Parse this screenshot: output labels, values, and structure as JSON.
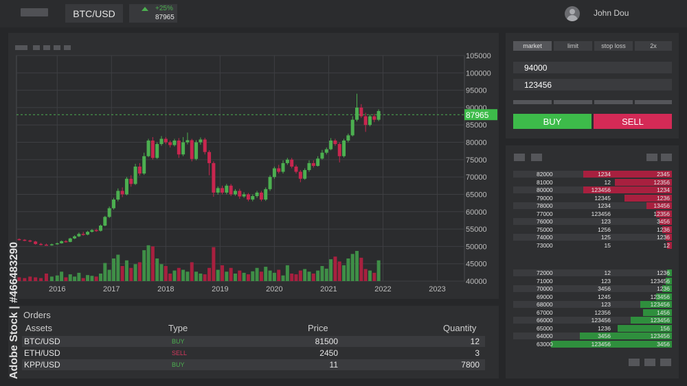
{
  "header": {
    "pair": "BTC/USD",
    "change": "+25%",
    "price": "87965",
    "user": "John Dou"
  },
  "chart_data": {
    "type": "candlestick",
    "x_ticks": [
      "2016",
      "2017",
      "2018",
      "2019",
      "2020",
      "2021",
      "2022",
      "2023"
    ],
    "y_ticks": [
      "105000",
      "100000",
      "95000",
      "90000",
      "85000",
      "80000",
      "75000",
      "70000",
      "65000",
      "60000",
      "55000",
      "50000",
      "45000",
      "40000"
    ],
    "ylim": [
      40000,
      105000
    ],
    "xlim": [
      2015.25,
      2023.5
    ],
    "current_price": 87965,
    "current_price_label": "87965",
    "candles": [
      [
        2015.3,
        52100,
        51900,
        52300,
        51700
      ],
      [
        2015.4,
        51900,
        51700,
        52100,
        51500
      ],
      [
        2015.5,
        51700,
        51400,
        51900,
        51200
      ],
      [
        2015.6,
        51400,
        50700,
        51600,
        50500
      ],
      [
        2015.7,
        50700,
        50500,
        51000,
        50300
      ],
      [
        2015.8,
        50500,
        50400,
        50800,
        50200
      ],
      [
        2015.9,
        50400,
        50600,
        50800,
        50200
      ],
      [
        2016.0,
        50600,
        50900,
        51100,
        50500
      ],
      [
        2016.08,
        50900,
        51500,
        51700,
        50800
      ],
      [
        2016.16,
        51500,
        51300,
        51800,
        51100
      ],
      [
        2016.24,
        51300,
        52300,
        52500,
        51200
      ],
      [
        2016.32,
        52300,
        52900,
        53200,
        52100
      ],
      [
        2016.4,
        52900,
        53600,
        54000,
        52700
      ],
      [
        2016.48,
        53600,
        53400,
        54200,
        53100
      ],
      [
        2016.56,
        53400,
        54200,
        54500,
        53200
      ],
      [
        2016.64,
        54200,
        54700,
        55000,
        54000
      ],
      [
        2016.72,
        54700,
        54500,
        55100,
        54200
      ],
      [
        2016.8,
        54500,
        56000,
        56300,
        54300
      ],
      [
        2016.88,
        56000,
        58500,
        58800,
        55800
      ],
      [
        2016.96,
        58500,
        61000,
        61500,
        58200
      ],
      [
        2017.04,
        61000,
        63500,
        64000,
        60600
      ],
      [
        2017.12,
        63500,
        66000,
        66700,
        63000
      ],
      [
        2017.2,
        66000,
        65000,
        67000,
        64200
      ],
      [
        2017.28,
        65000,
        69500,
        70000,
        64700
      ],
      [
        2017.36,
        69500,
        68000,
        70500,
        67200
      ],
      [
        2017.44,
        68000,
        73000,
        73800,
        67700
      ],
      [
        2017.52,
        73000,
        71000,
        74000,
        70400
      ],
      [
        2017.6,
        71000,
        76000,
        77000,
        70600
      ],
      [
        2017.68,
        76000,
        80500,
        81000,
        75700
      ],
      [
        2017.76,
        80500,
        75500,
        81500,
        75000
      ],
      [
        2017.84,
        75500,
        79500,
        80000,
        75200
      ],
      [
        2017.92,
        79500,
        81000,
        81800,
        79000
      ],
      [
        2018.0,
        81000,
        80000,
        81500,
        79500
      ],
      [
        2018.08,
        80000,
        79200,
        80500,
        78500
      ],
      [
        2018.16,
        79200,
        80500,
        81000,
        78800
      ],
      [
        2018.24,
        80500,
        76500,
        81200,
        75500
      ],
      [
        2018.32,
        76500,
        80000,
        81500,
        76000
      ],
      [
        2018.4,
        80000,
        80600,
        82800,
        79400
      ],
      [
        2018.48,
        80600,
        75200,
        81000,
        74500
      ],
      [
        2018.56,
        75200,
        80000,
        80600,
        74800
      ],
      [
        2018.64,
        80000,
        80800,
        81400,
        79300
      ],
      [
        2018.72,
        80800,
        77200,
        81300,
        76500
      ],
      [
        2018.8,
        77200,
        74000,
        77700,
        70500
      ],
      [
        2018.88,
        74000,
        65500,
        74500,
        64300
      ],
      [
        2018.96,
        65500,
        66800,
        67300,
        64900
      ],
      [
        2019.04,
        66800,
        65500,
        67500,
        65000
      ],
      [
        2019.12,
        65500,
        67500,
        68000,
        65000
      ],
      [
        2019.2,
        67500,
        65000,
        68000,
        64500
      ],
      [
        2019.28,
        65000,
        66000,
        66500,
        64600
      ],
      [
        2019.36,
        66000,
        64400,
        66600,
        63700
      ],
      [
        2019.44,
        64400,
        65000,
        65600,
        64000
      ],
      [
        2019.52,
        65000,
        63500,
        65400,
        63000
      ],
      [
        2019.6,
        63500,
        64500,
        65000,
        63000
      ],
      [
        2019.68,
        64500,
        65500,
        66000,
        64000
      ],
      [
        2019.76,
        65500,
        63500,
        66000,
        63000
      ],
      [
        2019.84,
        63500,
        66500,
        67000,
        63100
      ],
      [
        2019.92,
        66500,
        70000,
        70500,
        66000
      ],
      [
        2020.0,
        70000,
        72500,
        73000,
        69500
      ],
      [
        2020.08,
        72500,
        71500,
        73500,
        71000
      ],
      [
        2020.16,
        71500,
        74000,
        74800,
        71000
      ],
      [
        2020.24,
        74000,
        75000,
        75500,
        73500
      ],
      [
        2020.32,
        75000,
        73000,
        75500,
        72500
      ],
      [
        2020.4,
        73000,
        71500,
        73500,
        71000
      ],
      [
        2020.48,
        71500,
        69500,
        72000,
        68500
      ],
      [
        2020.56,
        69500,
        72000,
        72500,
        69200
      ],
      [
        2020.64,
        72000,
        74000,
        74800,
        71500
      ],
      [
        2020.72,
        74000,
        73200,
        74800,
        72700
      ],
      [
        2020.8,
        73200,
        75300,
        76000,
        73000
      ],
      [
        2020.88,
        75300,
        77000,
        77800,
        75000
      ],
      [
        2020.96,
        77000,
        78000,
        78500,
        76500
      ],
      [
        2021.04,
        78000,
        80500,
        81200,
        77700
      ],
      [
        2021.12,
        80500,
        79500,
        81000,
        79000
      ],
      [
        2021.2,
        79500,
        76000,
        80000,
        74200
      ],
      [
        2021.28,
        76000,
        80500,
        81000,
        75600
      ],
      [
        2021.36,
        80500,
        82000,
        82500,
        80000
      ],
      [
        2021.44,
        82000,
        86500,
        87500,
        81700
      ],
      [
        2021.52,
        86500,
        90000,
        94000,
        86000
      ],
      [
        2021.6,
        90000,
        87500,
        91000,
        87000
      ],
      [
        2021.68,
        87500,
        85000,
        88500,
        83000
      ],
      [
        2021.76,
        85000,
        87500,
        88000,
        84600
      ],
      [
        2021.84,
        87500,
        86500,
        88200,
        85800
      ],
      [
        2021.92,
        86500,
        89000,
        89500,
        86100
      ]
    ],
    "volumes": [
      [
        2015.3,
        0.1
      ],
      [
        2015.4,
        0.08
      ],
      [
        2015.5,
        0.12
      ],
      [
        2015.6,
        0.1
      ],
      [
        2015.7,
        0.08
      ],
      [
        2015.8,
        0.2
      ],
      [
        2015.9,
        0.12
      ],
      [
        2016.0,
        0.15
      ],
      [
        2016.08,
        0.25
      ],
      [
        2016.16,
        0.1
      ],
      [
        2016.24,
        0.18
      ],
      [
        2016.32,
        0.12
      ],
      [
        2016.4,
        0.22
      ],
      [
        2016.48,
        0.08
      ],
      [
        2016.56,
        0.16
      ],
      [
        2016.64,
        0.14
      ],
      [
        2016.72,
        0.12
      ],
      [
        2016.8,
        0.2
      ],
      [
        2016.88,
        0.48
      ],
      [
        2016.96,
        0.3
      ],
      [
        2017.04,
        0.6
      ],
      [
        2017.12,
        0.7
      ],
      [
        2017.2,
        0.4
      ],
      [
        2017.28,
        0.55
      ],
      [
        2017.36,
        0.35
      ],
      [
        2017.44,
        0.45
      ],
      [
        2017.52,
        0.5
      ],
      [
        2017.6,
        0.82
      ],
      [
        2017.68,
        0.95
      ],
      [
        2017.76,
        0.92
      ],
      [
        2017.84,
        0.6
      ],
      [
        2017.92,
        0.45
      ],
      [
        2018.0,
        0.4
      ],
      [
        2018.08,
        0.2
      ],
      [
        2018.16,
        0.28
      ],
      [
        2018.24,
        0.35
      ],
      [
        2018.32,
        0.3
      ],
      [
        2018.4,
        0.25
      ],
      [
        2018.48,
        0.5
      ],
      [
        2018.56,
        0.25
      ],
      [
        2018.64,
        0.2
      ],
      [
        2018.72,
        0.18
      ],
      [
        2018.8,
        0.35
      ],
      [
        2018.88,
        0.9
      ],
      [
        2018.96,
        0.3
      ],
      [
        2019.04,
        0.42
      ],
      [
        2019.12,
        0.25
      ],
      [
        2019.2,
        0.35
      ],
      [
        2019.28,
        0.2
      ],
      [
        2019.36,
        0.28
      ],
      [
        2019.44,
        0.22
      ],
      [
        2019.52,
        0.18
      ],
      [
        2019.6,
        0.26
      ],
      [
        2019.68,
        0.35
      ],
      [
        2019.76,
        0.25
      ],
      [
        2019.84,
        0.38
      ],
      [
        2019.92,
        0.28
      ],
      [
        2020.0,
        0.22
      ],
      [
        2020.08,
        0.3
      ],
      [
        2020.16,
        0.15
      ],
      [
        2020.24,
        0.42
      ],
      [
        2020.32,
        0.2
      ],
      [
        2020.4,
        0.18
      ],
      [
        2020.48,
        0.28
      ],
      [
        2020.56,
        0.32
      ],
      [
        2020.64,
        0.25
      ],
      [
        2020.72,
        0.2
      ],
      [
        2020.8,
        0.28
      ],
      [
        2020.88,
        0.4
      ],
      [
        2020.96,
        0.33
      ],
      [
        2021.04,
        0.58
      ],
      [
        2021.12,
        0.65
      ],
      [
        2021.2,
        0.52
      ],
      [
        2021.28,
        0.42
      ],
      [
        2021.36,
        0.6
      ],
      [
        2021.44,
        0.72
      ],
      [
        2021.52,
        0.8
      ],
      [
        2021.6,
        0.62
      ],
      [
        2021.68,
        0.32
      ],
      [
        2021.76,
        0.28
      ],
      [
        2021.84,
        0.22
      ],
      [
        2021.92,
        0.55
      ]
    ]
  },
  "orders": {
    "title": "Orders",
    "headers": {
      "assets": "Assets",
      "type": "Type",
      "price": "Price",
      "quantity": "Quantity"
    },
    "rows": [
      {
        "asset": "BTC/USD",
        "type": "BUY",
        "price": "81500",
        "qty": "12"
      },
      {
        "asset": "ETH/USD",
        "type": "SELL",
        "price": "2450",
        "qty": "3"
      },
      {
        "asset": "KPP/USD",
        "type": "BUY",
        "price": "11",
        "qty": "7800"
      }
    ]
  },
  "trade": {
    "tabs": [
      "market",
      "limit",
      "stop loss",
      "2x"
    ],
    "price_value": "94000",
    "amount_value": "123456",
    "buy_label": "BUY",
    "sell_label": "SELL"
  },
  "orderbook": {
    "asks": [
      {
        "price": "82000",
        "qty": "1234",
        "total": "2345",
        "depth": 0.56
      },
      {
        "price": "81000",
        "qty": "12",
        "total": "12356",
        "depth": 0.36
      },
      {
        "price": "80000",
        "qty": "123456",
        "total": "1234",
        "depth": 0.56
      },
      {
        "price": "79000",
        "qty": "12345",
        "total": "1236",
        "depth": 0.3
      },
      {
        "price": "78000",
        "qty": "1234",
        "total": "13456",
        "depth": 0.16
      },
      {
        "price": "77000",
        "qty": "123456",
        "total": "12356",
        "depth": 0.1
      },
      {
        "price": "76000",
        "qty": "123",
        "total": "3456",
        "depth": 0.08
      },
      {
        "price": "75000",
        "qty": "1256",
        "total": "1236",
        "depth": 0.06
      },
      {
        "price": "74000",
        "qty": "125",
        "total": "1236",
        "depth": 0.04
      },
      {
        "price": "73000",
        "qty": "15",
        "total": "12",
        "depth": 0.03
      }
    ],
    "bids": [
      {
        "price": "72000",
        "qty": "12",
        "total": "1236",
        "depth": 0.03
      },
      {
        "price": "71000",
        "qty": "123",
        "total": "123456",
        "depth": 0.04
      },
      {
        "price": "70000",
        "qty": "3456",
        "total": "1236",
        "depth": 0.06
      },
      {
        "price": "69000",
        "qty": "1245",
        "total": "123456",
        "depth": 0.1
      },
      {
        "price": "68000",
        "qty": "123",
        "total": "123456",
        "depth": 0.2
      },
      {
        "price": "67000",
        "qty": "12356",
        "total": "1456",
        "depth": 0.18
      },
      {
        "price": "66000",
        "qty": "123456",
        "total": "123456",
        "depth": 0.26
      },
      {
        "price": "65000",
        "qty": "1236",
        "total": "156",
        "depth": 0.34
      },
      {
        "price": "64000",
        "qty": "3456",
        "total": "123456",
        "depth": 0.58
      },
      {
        "price": "63000",
        "qty": "123456",
        "total": "3456",
        "depth": 0.76
      }
    ]
  },
  "watermark": "Adobe Stock | #466483290",
  "colors": {
    "up": "#4caf50",
    "down": "#c8264f",
    "buy_btn": "#3dbb4a",
    "sell_btn": "#d42a56",
    "ask_depth": "#a8203f",
    "bid_depth": "#2f8f3d"
  }
}
